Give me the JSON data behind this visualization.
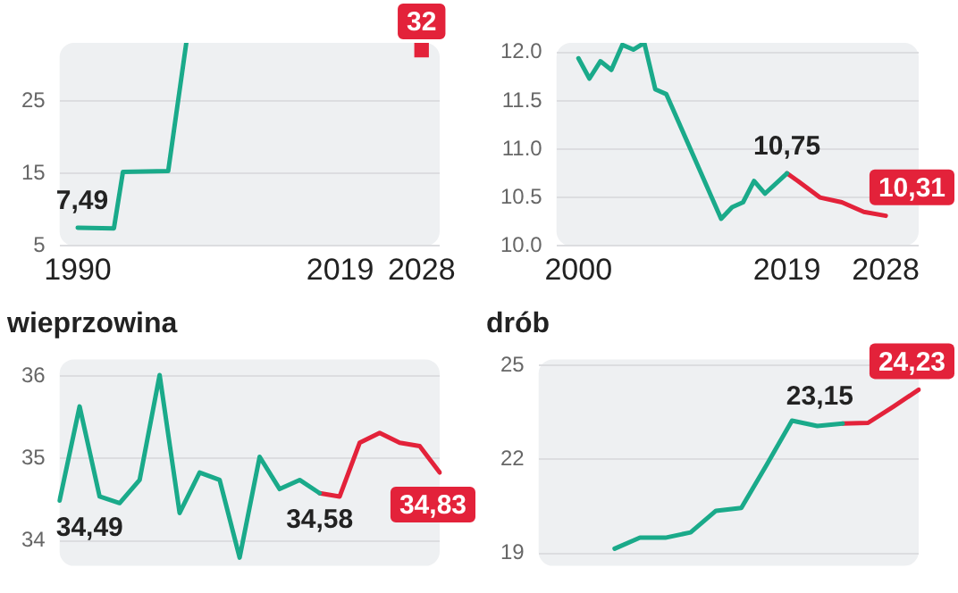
{
  "chart_data": [
    {
      "type": "line",
      "xlim": [
        1988,
        2030
      ],
      "xticks": [
        1990,
        2019,
        2028
      ],
      "ylim": [
        5,
        33
      ],
      "yticks": [
        5,
        15,
        25
      ],
      "grid": "y",
      "series": [
        {
          "color": "#1aaa8a",
          "x": [
            1990,
            1994,
            1995,
            2000,
            2002
          ],
          "values": [
            7.49,
            7.4,
            15.2,
            15.3,
            33
          ],
          "value_labels": [
            "7,49",
            null,
            null,
            null,
            null
          ]
        },
        {
          "color": "#e3223a",
          "marker": "square",
          "x": [
            2028
          ],
          "values": [
            32
          ],
          "value_labels": [
            "32"
          ]
        }
      ]
    },
    {
      "type": "line",
      "xlim": [
        1998,
        2031
      ],
      "xticks": [
        2000,
        2019,
        2028
      ],
      "ylim": [
        10.0,
        12.1
      ],
      "yticks": [
        {
          "value": 10,
          "label": "10.0"
        },
        {
          "value": 10.5,
          "label": "10.5"
        },
        {
          "value": 11,
          "label": "11.0"
        },
        {
          "value": 11.5,
          "label": "11.5"
        },
        {
          "value": 12,
          "label": "12.0"
        }
      ],
      "grid": "y",
      "series": [
        {
          "color": "#1aaa8a",
          "x": [
            2000,
            2001,
            2002,
            2003,
            2004,
            2005,
            2006,
            2007,
            2008,
            2013,
            2014,
            2015,
            2016,
            2017,
            2019
          ],
          "values": [
            11.94,
            11.73,
            11.91,
            11.82,
            12.08,
            12.03,
            12.1,
            11.62,
            11.57,
            10.28,
            10.4,
            10.45,
            10.67,
            10.54,
            10.75
          ],
          "value_labels": [
            null,
            null,
            null,
            null,
            null,
            null,
            null,
            null,
            null,
            null,
            null,
            null,
            null,
            null,
            "10,75"
          ]
        },
        {
          "color": "#e3223a",
          "x": [
            2019,
            2020,
            2022,
            2024,
            2026,
            2028
          ],
          "values": [
            10.75,
            10.67,
            10.5,
            10.45,
            10.35,
            10.31
          ],
          "value_labels": [
            null,
            null,
            null,
            null,
            null,
            "10,31"
          ]
        }
      ]
    },
    {
      "type": "line",
      "title": "wieprzowina",
      "categories": [
        null,
        null,
        null,
        null,
        null,
        null,
        null,
        null,
        null,
        null,
        null,
        null,
        null,
        null,
        null,
        null,
        null,
        null,
        null,
        null
      ],
      "ylim": [
        33.7,
        36.2
      ],
      "yticks": [
        34,
        35,
        36
      ],
      "grid": "y",
      "tick_labels": "y",
      "series": [
        {
          "color": "#1aaa8a",
          "values": [
            34.49,
            35.63,
            34.54,
            34.46,
            34.74,
            36.01,
            34.34,
            34.83,
            34.74,
            33.8,
            35.02,
            34.63,
            34.74,
            34.58,
            null,
            null,
            null,
            null,
            null,
            null
          ],
          "value_labels": [
            "34,49",
            null,
            null,
            null,
            null,
            null,
            null,
            null,
            null,
            null,
            null,
            null,
            null,
            "34,58",
            null,
            null,
            null,
            null,
            null,
            null
          ]
        },
        {
          "color": "#e3223a",
          "values": [
            null,
            null,
            null,
            null,
            null,
            null,
            null,
            null,
            null,
            null,
            null,
            null,
            null,
            34.58,
            34.54,
            35.19,
            35.31,
            35.19,
            35.15,
            34.83
          ],
          "value_labels": [
            null,
            null,
            null,
            null,
            null,
            null,
            null,
            null,
            null,
            null,
            null,
            null,
            null,
            null,
            null,
            null,
            null,
            null,
            null,
            "34,83"
          ]
        }
      ]
    },
    {
      "type": "line",
      "title": "drób",
      "categories": [
        null,
        null,
        null,
        null,
        null,
        null,
        null,
        null,
        null,
        null,
        null,
        null,
        null,
        null,
        null,
        null
      ],
      "ylim": [
        18.6,
        25.2
      ],
      "yticks": [
        19,
        22,
        25
      ],
      "grid": "y",
      "tick_labels": "y",
      "series": [
        {
          "color": "#1aaa8a",
          "values": [
            null,
            null,
            null,
            19.15,
            19.5,
            19.5,
            19.67,
            20.36,
            20.45,
            21.83,
            23.24,
            23.07,
            23.15,
            null,
            null,
            null
          ],
          "value_labels": [
            null,
            null,
            null,
            null,
            null,
            null,
            null,
            null,
            null,
            null,
            null,
            null,
            "23,15",
            null,
            null,
            null
          ]
        },
        {
          "color": "#e3223a",
          "values": [
            null,
            null,
            null,
            null,
            null,
            null,
            null,
            null,
            null,
            null,
            null,
            null,
            23.15,
            23.17,
            23.69,
            24.23
          ],
          "value_labels": [
            null,
            null,
            null,
            null,
            null,
            null,
            null,
            null,
            null,
            null,
            null,
            null,
            null,
            null,
            null,
            "24,23"
          ]
        }
      ]
    }
  ]
}
